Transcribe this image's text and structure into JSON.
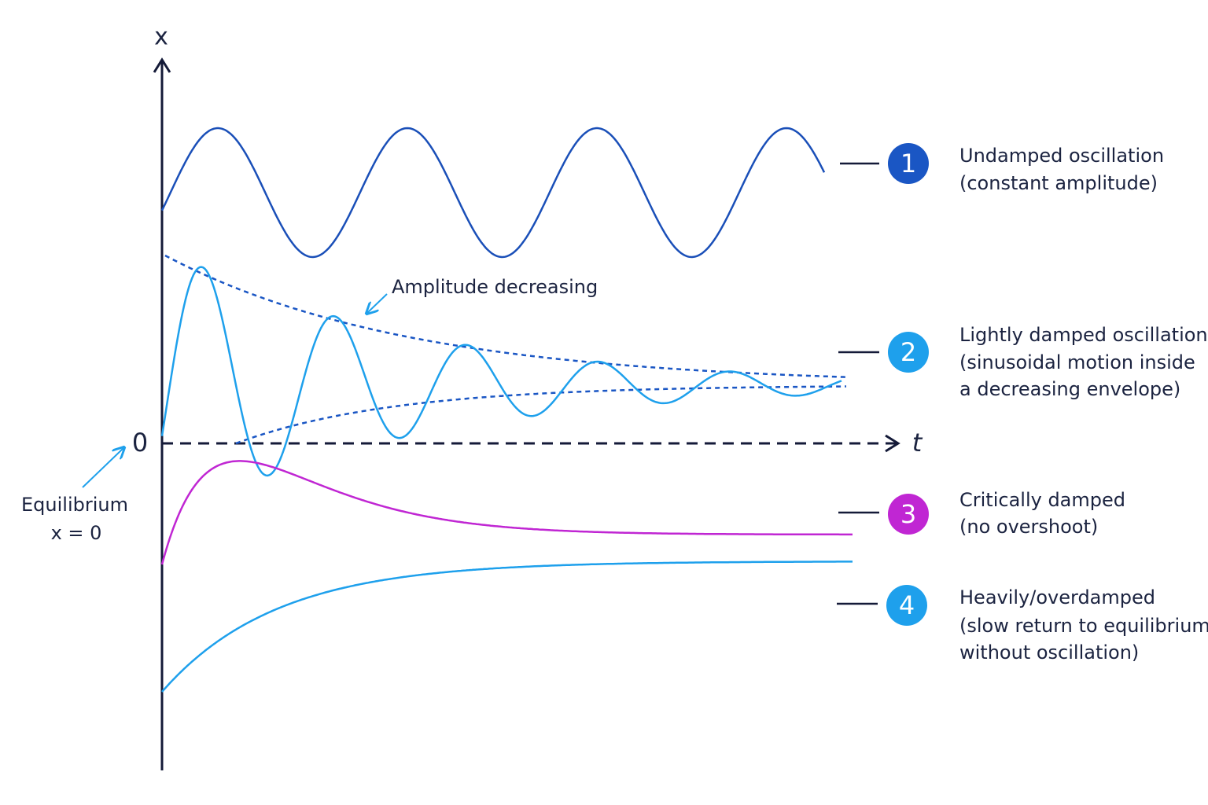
{
  "axes": {
    "y_label": "x",
    "x_label": "t",
    "zero_label": "0"
  },
  "annotations": {
    "amplitude": "Amplitude decreasing",
    "equilibrium": [
      "Equilibrium",
      "x = 0"
    ]
  },
  "legend": {
    "items": [
      {
        "number": "1",
        "lines": [
          "Undamped oscillation",
          "(constant amplitude)"
        ]
      },
      {
        "number": "2",
        "lines": [
          "Lightly damped oscillation",
          "(sinusoidal motion inside",
          "a decreasing envelope)"
        ]
      },
      {
        "number": "3",
        "lines": [
          "Critically damped",
          "(no overshoot)"
        ]
      },
      {
        "number": "4",
        "lines": [
          "Heavily/overdamped",
          "(slow return to equilibrium",
          "without oscillation)"
        ]
      }
    ]
  }
}
